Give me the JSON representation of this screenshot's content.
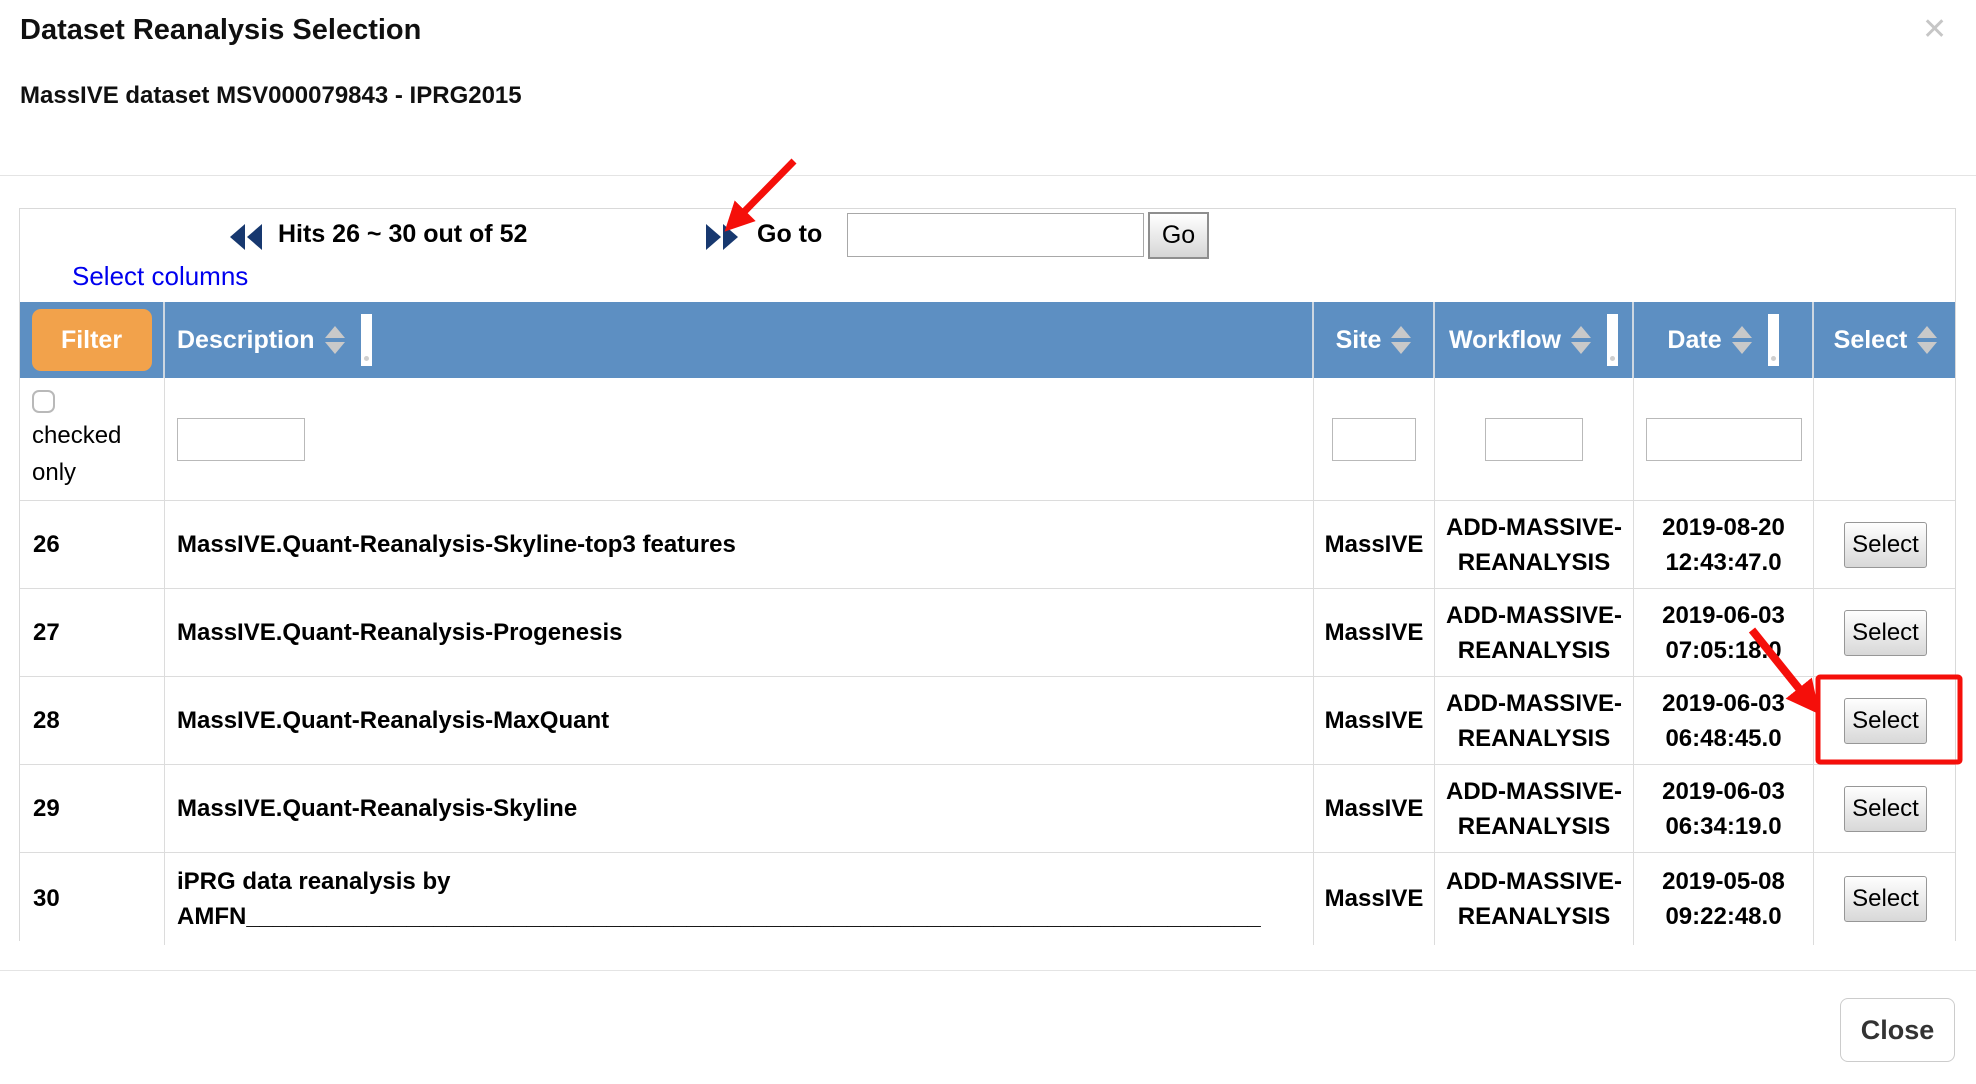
{
  "modal": {
    "title": "Dataset Reanalysis Selection",
    "subtitle": "MassIVE dataset MSV000079843 - IPRG2015",
    "close_icon": "✕",
    "close_button_label": "Close"
  },
  "pagination": {
    "hits_text": "Hits 26 ~ 30 out of 52",
    "goto_label": "Go to",
    "goto_value": "",
    "go_button_label": "Go",
    "select_columns_label": "Select columns"
  },
  "table": {
    "filter_button_label": "Filter",
    "checked_only_line1": "checked",
    "checked_only_line2": "only",
    "filter_checkbox_checked": false,
    "filter_values": {
      "description": "",
      "site": "",
      "workflow": "",
      "date": ""
    },
    "columns": [
      {
        "key": "description",
        "label": "Description",
        "sortable": true,
        "resize_handle": true
      },
      {
        "key": "site",
        "label": "Site",
        "sortable": true,
        "resize_handle": false
      },
      {
        "key": "workflow",
        "label": "Workflow",
        "sortable": true,
        "resize_handle": true
      },
      {
        "key": "date",
        "label": "Date",
        "sortable": true,
        "resize_handle": true
      },
      {
        "key": "select",
        "label": "Select",
        "sortable": true,
        "resize_handle": false
      }
    ],
    "rows": [
      {
        "num": "26",
        "description": "MassIVE.Quant-Reanalysis-Skyline-top3 features",
        "site": "MassIVE",
        "workflow": "ADD-MASSIVE-REANALYSIS",
        "date": "2019-08-20 12:43:47.0",
        "select_label": "Select",
        "highlighted": false
      },
      {
        "num": "27",
        "description": "MassIVE.Quant-Reanalysis-Progenesis",
        "site": "MassIVE",
        "workflow": "ADD-MASSIVE-REANALYSIS",
        "date": "2019-06-03 07:05:18.0",
        "select_label": "Select",
        "highlighted": false
      },
      {
        "num": "28",
        "description": "MassIVE.Quant-Reanalysis-MaxQuant",
        "site": "MassIVE",
        "workflow": "ADD-MASSIVE-REANALYSIS",
        "date": "2019-06-03 06:48:45.0",
        "select_label": "Select",
        "highlighted": true
      },
      {
        "num": "29",
        "description": "MassIVE.Quant-Reanalysis-Skyline",
        "site": "MassIVE",
        "workflow": "ADD-MASSIVE-REANALYSIS",
        "date": "2019-06-03 06:34:19.0",
        "select_label": "Select",
        "highlighted": false
      },
      {
        "num": "30",
        "description": "iPRG data reanalysis by",
        "description_line2": "AMFN____________________________________________________________________________",
        "site": "MassIVE",
        "workflow": "ADD-MASSIVE-REANALYSIS",
        "date": "2019-05-08 09:22:48.0",
        "select_label": "Select",
        "highlighted": false
      }
    ]
  },
  "colors": {
    "header_blue": "#5d8fc2",
    "filter_orange": "#f2a24b",
    "link_blue": "#0000ee",
    "nav_arrow_navy": "#17386f",
    "annotation_red": "#f50f0a",
    "sort_arrow_gray": "#c9c9c9"
  }
}
